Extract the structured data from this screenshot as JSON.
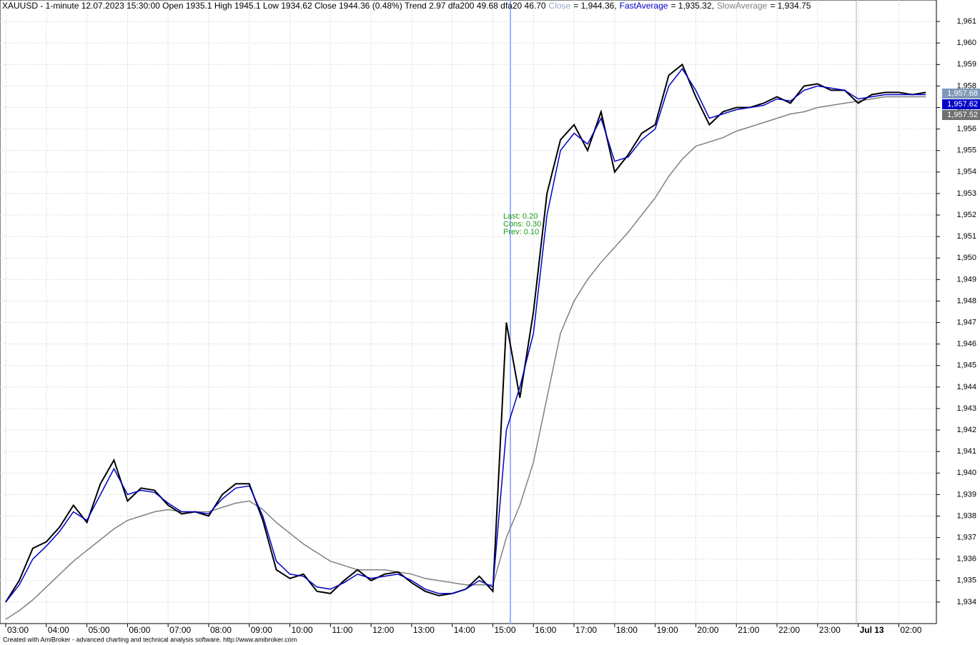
{
  "chart_data": {
    "type": "line",
    "title": "XAUUSD - 1-minute 12.07.2023 15:30:00 Open 1935.1 High 1945.1 Low 1934.62 Close 1944.36 (0.48%) Trend 2.97 dfa200 49.68 dfa20 46.70",
    "categories": [
      "03:00",
      null,
      null,
      "04:00",
      null,
      null,
      "05:00",
      null,
      null,
      "06:00",
      null,
      null,
      "07:00",
      null,
      null,
      "08:00",
      null,
      null,
      "09:00",
      null,
      null,
      "10:00",
      null,
      null,
      "11:00",
      null,
      null,
      "12:00",
      null,
      null,
      "13:00",
      null,
      null,
      "14:00",
      null,
      null,
      "15:00",
      null,
      null,
      "16:00",
      null,
      null,
      "17:00",
      null,
      null,
      "18:00",
      null,
      null,
      "19:00",
      null,
      null,
      "20:00",
      null,
      null,
      "21:00",
      null,
      null,
      "22:00",
      null,
      null,
      "23:00",
      null,
      null,
      "Jul 13",
      null,
      null,
      "02:00",
      null,
      null
    ],
    "series": [
      {
        "name": "Close",
        "legend_label": "= 1,944.36,",
        "legend_color": "#97a9c9",
        "color": "#000000",
        "values": [
          1934.0,
          1935.0,
          1936.5,
          1936.8,
          1937.5,
          1938.5,
          1937.7,
          1939.5,
          1940.6,
          1938.7,
          1939.3,
          1939.2,
          1938.5,
          1938.1,
          1938.2,
          1938.0,
          1939.0,
          1939.5,
          1939.5,
          1937.8,
          1935.5,
          1935.1,
          1935.3,
          1934.5,
          1934.4,
          1935.0,
          1935.5,
          1935.0,
          1935.3,
          1935.4,
          1934.9,
          1934.5,
          1934.3,
          1934.4,
          1934.6,
          1935.2,
          1934.5,
          1947.0,
          1943.5,
          1947.5,
          1953.0,
          1955.5,
          1956.2,
          1955.0,
          1956.8,
          1954.0,
          1954.8,
          1955.8,
          1956.2,
          1958.5,
          1959.0,
          1957.5,
          1956.2,
          1956.8,
          1957.0,
          1957.0,
          1957.2,
          1957.5,
          1957.2,
          1958.0,
          1958.1,
          1957.8,
          1957.8,
          1957.2,
          1957.6,
          1957.7,
          1957.7,
          1957.6,
          1957.7
        ]
      },
      {
        "name": "FastAverage",
        "legend_label": "= 1,935.32,",
        "legend_color": "#0000c8",
        "color": "#0000c8",
        "values": [
          1934.0,
          1934.8,
          1936.0,
          1936.6,
          1937.3,
          1938.2,
          1937.8,
          1939.0,
          1940.2,
          1939.0,
          1939.2,
          1939.1,
          1938.6,
          1938.2,
          1938.2,
          1938.1,
          1938.8,
          1939.3,
          1939.4,
          1938.0,
          1935.9,
          1935.3,
          1935.2,
          1934.7,
          1934.6,
          1934.9,
          1935.3,
          1935.1,
          1935.2,
          1935.3,
          1935.0,
          1934.6,
          1934.4,
          1934.4,
          1934.6,
          1935.0,
          1934.7,
          1942.0,
          1944.0,
          1946.5,
          1952.0,
          1955.0,
          1955.8,
          1955.3,
          1956.5,
          1954.5,
          1954.7,
          1955.5,
          1956.0,
          1958.0,
          1958.8,
          1957.8,
          1956.5,
          1956.7,
          1956.9,
          1957.0,
          1957.1,
          1957.4,
          1957.3,
          1957.8,
          1958.0,
          1957.9,
          1957.8,
          1957.4,
          1957.5,
          1957.6,
          1957.6,
          1957.6,
          1957.6
        ]
      },
      {
        "name": "SlowAverage",
        "legend_label": "= 1,934.75",
        "legend_color": "#808080",
        "color": "#808080",
        "values": [
          1933.2,
          1933.6,
          1934.1,
          1934.7,
          1935.3,
          1935.9,
          1936.4,
          1936.9,
          1937.4,
          1937.8,
          1938.0,
          1938.2,
          1938.3,
          1938.2,
          1938.2,
          1938.2,
          1938.4,
          1938.6,
          1938.7,
          1938.3,
          1937.7,
          1937.2,
          1936.7,
          1936.3,
          1935.9,
          1935.7,
          1935.5,
          1935.5,
          1935.5,
          1935.4,
          1935.3,
          1935.1,
          1935.0,
          1934.9,
          1934.8,
          1934.8,
          1934.8,
          1937.0,
          1938.5,
          1940.5,
          1943.5,
          1946.5,
          1948.0,
          1949.0,
          1949.8,
          1950.5,
          1951.2,
          1952.0,
          1952.8,
          1953.8,
          1954.6,
          1955.2,
          1955.4,
          1955.6,
          1955.9,
          1956.1,
          1956.3,
          1956.5,
          1956.7,
          1956.8,
          1957.0,
          1957.1,
          1957.2,
          1957.3,
          1957.4,
          1957.5,
          1957.5,
          1957.5,
          1957.5
        ]
      }
    ],
    "ylim": [
      1933,
      1962
    ],
    "yticks": [
      {
        "value": 1934,
        "label": "1,934"
      },
      {
        "value": 1935,
        "label": "1,935"
      },
      {
        "value": 1936,
        "label": "1,936"
      },
      {
        "value": 1937,
        "label": "1,937"
      },
      {
        "value": 1938,
        "label": "1,938"
      },
      {
        "value": 1939,
        "label": "1,939"
      },
      {
        "value": 1940,
        "label": "1,940"
      },
      {
        "value": 1941,
        "label": "1,941"
      },
      {
        "value": 1942,
        "label": "1,942"
      },
      {
        "value": 1943,
        "label": "1,943"
      },
      {
        "value": 1944,
        "label": "1,944"
      },
      {
        "value": 1945,
        "label": "1,945"
      },
      {
        "value": 1946,
        "label": "1,946"
      },
      {
        "value": 1947,
        "label": "1,947"
      },
      {
        "value": 1948,
        "label": "1,948"
      },
      {
        "value": 1949,
        "label": "1,949"
      },
      {
        "value": 1950,
        "label": "1,950"
      },
      {
        "value": 1951,
        "label": "1,951"
      },
      {
        "value": 1952,
        "label": "1,952"
      },
      {
        "value": 1953,
        "label": "1,953"
      },
      {
        "value": 1954,
        "label": "1,954"
      },
      {
        "value": 1955,
        "label": "1,955"
      },
      {
        "value": 1956,
        "label": "1,956"
      },
      {
        "value": 1957,
        "label": "1,957"
      },
      {
        "value": 1958,
        "label": "1,958"
      },
      {
        "value": 1959,
        "label": "1,959"
      },
      {
        "value": 1960,
        "label": "1,960"
      },
      {
        "value": 1961,
        "label": "1,961"
      }
    ],
    "grid": true,
    "price_labels": [
      {
        "label": "1,957.68",
        "color": "#7f98b8"
      },
      {
        "label": "1,957.62",
        "color": "#0000c8"
      },
      {
        "label": "1,957.52",
        "color": "#707070"
      }
    ],
    "annotations": [
      "Last: 0.20",
      "Cons: 0.30",
      "Prev: 0.10"
    ],
    "footer": "Created with AmiBroker - advanced charting and technical analysis software. http://www.amibroker.com"
  }
}
